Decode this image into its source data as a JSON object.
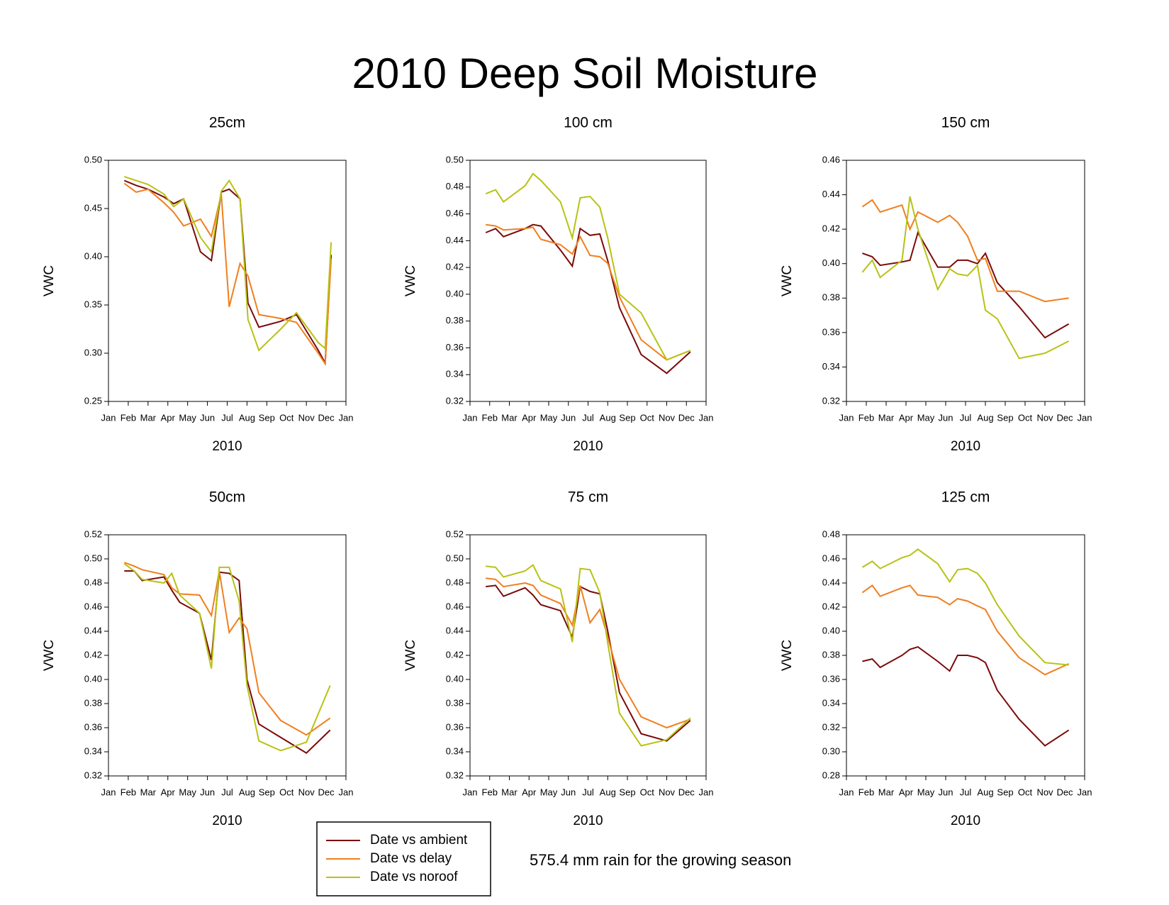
{
  "title": "2010 Deep Soil Moisture",
  "note": "575.4 mm rain for the growing season",
  "chart_data": [
    {
      "type": "line",
      "title": "25cm",
      "xlabel": "2010",
      "ylabel": "VWC",
      "x": [
        0.8,
        1.4,
        2.0,
        2.8,
        3.3,
        3.8,
        4.65,
        5.2,
        5.7,
        6.1,
        6.65,
        7.05,
        7.6,
        8.7,
        9.5,
        10.6,
        10.95,
        11.25
      ],
      "xlim": [
        0,
        12
      ],
      "xticks": [
        {
          "value": 0,
          "label": "Jan"
        },
        {
          "value": 1,
          "label": "Feb"
        },
        {
          "value": 2,
          "label": "Mar"
        },
        {
          "value": 3,
          "label": "Apr"
        },
        {
          "value": 4,
          "label": "May"
        },
        {
          "value": 5,
          "label": "Jun"
        },
        {
          "value": 6,
          "label": "Jul"
        },
        {
          "value": 7,
          "label": "Aug"
        },
        {
          "value": 8,
          "label": "Sep"
        },
        {
          "value": 9,
          "label": "Oct"
        },
        {
          "value": 10,
          "label": "Nov"
        },
        {
          "value": 11,
          "label": "Dec"
        },
        {
          "value": 12,
          "label": "Jan"
        }
      ],
      "ylim": [
        0.25,
        0.5
      ],
      "yticks": [
        {
          "value": 0.25,
          "label": "0.25"
        },
        {
          "value": 0.3,
          "label": "0.30"
        },
        {
          "value": 0.35,
          "label": "0.35"
        },
        {
          "value": 0.4,
          "label": "0.40"
        },
        {
          "value": 0.45,
          "label": "0.45"
        },
        {
          "value": 0.5,
          "label": "0.50"
        }
      ],
      "series": [
        {
          "name": "Date vs ambient",
          "color": "#7b0a0a",
          "values": [
            0.479,
            0.474,
            0.47,
            0.462,
            0.455,
            0.46,
            0.405,
            0.396,
            0.467,
            0.47,
            0.46,
            0.352,
            0.327,
            0.333,
            0.34,
            0.303,
            0.29,
            0.402
          ]
        },
        {
          "name": "Date vs delay",
          "color": "#f07f1e",
          "values": [
            0.476,
            0.467,
            0.47,
            0.456,
            0.446,
            0.432,
            0.439,
            0.421,
            0.465,
            0.348,
            0.393,
            0.38,
            0.34,
            0.336,
            0.332,
            0.3,
            0.289,
            0.398
          ]
        },
        {
          "name": "Date vs noroof",
          "color": "#b8c214",
          "values": [
            0.483,
            0.479,
            0.475,
            0.465,
            0.452,
            0.46,
            0.42,
            0.405,
            0.468,
            0.479,
            0.46,
            0.335,
            0.303,
            0.325,
            0.342,
            0.311,
            0.305,
            0.415
          ]
        }
      ]
    },
    {
      "type": "line",
      "title": "100 cm",
      "xlabel": "2010",
      "ylabel": "VWC",
      "x": [
        0.8,
        1.3,
        1.7,
        2.8,
        3.2,
        3.6,
        4.6,
        5.2,
        5.6,
        6.1,
        6.6,
        7.0,
        7.6,
        8.7,
        10.0,
        11.2
      ],
      "xlim": [
        0,
        12
      ],
      "xticks": [
        {
          "value": 0,
          "label": "Jan"
        },
        {
          "value": 1,
          "label": "Feb"
        },
        {
          "value": 2,
          "label": "Mar"
        },
        {
          "value": 3,
          "label": "Apr"
        },
        {
          "value": 4,
          "label": "May"
        },
        {
          "value": 5,
          "label": "Jun"
        },
        {
          "value": 6,
          "label": "Jul"
        },
        {
          "value": 7,
          "label": "Aug"
        },
        {
          "value": 8,
          "label": "Sep"
        },
        {
          "value": 9,
          "label": "Oct"
        },
        {
          "value": 10,
          "label": "Nov"
        },
        {
          "value": 11,
          "label": "Dec"
        },
        {
          "value": 12,
          "label": "Jan"
        }
      ],
      "ylim": [
        0.32,
        0.5
      ],
      "yticks": [
        {
          "value": 0.32,
          "label": "0.32"
        },
        {
          "value": 0.34,
          "label": "0.34"
        },
        {
          "value": 0.36,
          "label": "0.36"
        },
        {
          "value": 0.38,
          "label": "0.38"
        },
        {
          "value": 0.4,
          "label": "0.40"
        },
        {
          "value": 0.42,
          "label": "0.42"
        },
        {
          "value": 0.44,
          "label": "0.44"
        },
        {
          "value": 0.46,
          "label": "0.46"
        },
        {
          "value": 0.48,
          "label": "0.48"
        },
        {
          "value": 0.5,
          "label": "0.50"
        }
      ],
      "series": [
        {
          "color": "#7b0a0a",
          "values": [
            0.446,
            0.449,
            0.443,
            0.449,
            0.452,
            0.451,
            0.433,
            0.421,
            0.449,
            0.444,
            0.445,
            0.425,
            0.39,
            0.355,
            0.341,
            0.357
          ]
        },
        {
          "color": "#f07f1e",
          "values": [
            0.452,
            0.451,
            0.448,
            0.449,
            0.45,
            0.441,
            0.437,
            0.43,
            0.443,
            0.429,
            0.428,
            0.423,
            0.398,
            0.366,
            0.351,
            0.358
          ]
        },
        {
          "color": "#b8c214",
          "values": [
            0.475,
            0.478,
            0.469,
            0.481,
            0.49,
            0.485,
            0.469,
            0.442,
            0.472,
            0.473,
            0.465,
            0.442,
            0.4,
            0.386,
            0.351,
            0.358
          ]
        }
      ]
    },
    {
      "type": "line",
      "title": "150 cm",
      "xlabel": "2010",
      "ylabel": "VWC",
      "x": [
        0.8,
        1.3,
        1.7,
        2.8,
        3.2,
        3.6,
        4.6,
        5.2,
        5.6,
        6.1,
        6.6,
        7.0,
        7.6,
        8.7,
        10.0,
        11.2
      ],
      "xlim": [
        0,
        12
      ],
      "xticks": [
        {
          "value": 0,
          "label": "Jan"
        },
        {
          "value": 1,
          "label": "Feb"
        },
        {
          "value": 2,
          "label": "Mar"
        },
        {
          "value": 3,
          "label": "Apr"
        },
        {
          "value": 4,
          "label": "May"
        },
        {
          "value": 5,
          "label": "Jun"
        },
        {
          "value": 6,
          "label": "Jul"
        },
        {
          "value": 7,
          "label": "Aug"
        },
        {
          "value": 8,
          "label": "Sep"
        },
        {
          "value": 9,
          "label": "Oct"
        },
        {
          "value": 10,
          "label": "Nov"
        },
        {
          "value": 11,
          "label": "Dec"
        },
        {
          "value": 12,
          "label": "Jan"
        }
      ],
      "ylim": [
        0.32,
        0.46
      ],
      "yticks": [
        {
          "value": 0.32,
          "label": "0.32"
        },
        {
          "value": 0.34,
          "label": "0.34"
        },
        {
          "value": 0.36,
          "label": "0.36"
        },
        {
          "value": 0.38,
          "label": "0.38"
        },
        {
          "value": 0.4,
          "label": "0.40"
        },
        {
          "value": 0.42,
          "label": "0.42"
        },
        {
          "value": 0.44,
          "label": "0.44"
        },
        {
          "value": 0.46,
          "label": "0.46"
        }
      ],
      "series": [
        {
          "color": "#7b0a0a",
          "values": [
            0.406,
            0.404,
            0.399,
            0.401,
            0.402,
            0.418,
            0.398,
            0.398,
            0.402,
            0.402,
            0.4,
            0.406,
            0.389,
            0.375,
            0.357,
            0.365
          ]
        },
        {
          "color": "#f07f1e",
          "values": [
            0.433,
            0.437,
            0.43,
            0.434,
            0.42,
            0.43,
            0.424,
            0.428,
            0.424,
            0.416,
            0.402,
            0.403,
            0.384,
            0.384,
            0.378,
            0.38
          ]
        },
        {
          "color": "#b8c214",
          "values": [
            0.395,
            0.402,
            0.392,
            0.402,
            0.439,
            0.42,
            0.385,
            0.397,
            0.394,
            0.393,
            0.399,
            0.373,
            0.368,
            0.345,
            0.348,
            0.355
          ]
        }
      ]
    },
    {
      "type": "line",
      "title": "50cm",
      "xlabel": "2010",
      "ylabel": "VWC",
      "x": [
        0.8,
        1.3,
        1.7,
        2.8,
        3.2,
        3.6,
        4.6,
        5.2,
        5.6,
        6.1,
        6.6,
        7.0,
        7.6,
        8.7,
        10.0,
        11.2
      ],
      "xlim": [
        0,
        12
      ],
      "xticks": [
        {
          "value": 0,
          "label": "Jan"
        },
        {
          "value": 1,
          "label": "Feb"
        },
        {
          "value": 2,
          "label": "Mar"
        },
        {
          "value": 3,
          "label": "Apr"
        },
        {
          "value": 4,
          "label": "May"
        },
        {
          "value": 5,
          "label": "Jun"
        },
        {
          "value": 6,
          "label": "Jul"
        },
        {
          "value": 7,
          "label": "Aug"
        },
        {
          "value": 8,
          "label": "Sep"
        },
        {
          "value": 9,
          "label": "Oct"
        },
        {
          "value": 10,
          "label": "Nov"
        },
        {
          "value": 11,
          "label": "Dec"
        },
        {
          "value": 12,
          "label": "Jan"
        }
      ],
      "ylim": [
        0.32,
        0.52
      ],
      "yticks": [
        {
          "value": 0.32,
          "label": "0.32"
        },
        {
          "value": 0.34,
          "label": "0.34"
        },
        {
          "value": 0.36,
          "label": "0.36"
        },
        {
          "value": 0.38,
          "label": "0.38"
        },
        {
          "value": 0.4,
          "label": "0.40"
        },
        {
          "value": 0.42,
          "label": "0.42"
        },
        {
          "value": 0.44,
          "label": "0.44"
        },
        {
          "value": 0.46,
          "label": "0.46"
        },
        {
          "value": 0.48,
          "label": "0.48"
        },
        {
          "value": 0.5,
          "label": "0.50"
        },
        {
          "value": 0.52,
          "label": "0.52"
        }
      ],
      "series": [
        {
          "color": "#7b0a0a",
          "values": [
            0.49,
            0.49,
            0.482,
            0.485,
            0.474,
            0.464,
            0.455,
            0.416,
            0.489,
            0.488,
            0.482,
            0.4,
            0.363,
            0.352,
            0.339,
            0.358
          ]
        },
        {
          "color": "#f07f1e",
          "values": [
            0.497,
            0.494,
            0.491,
            0.487,
            0.476,
            0.471,
            0.47,
            0.453,
            0.49,
            0.439,
            0.451,
            0.442,
            0.389,
            0.366,
            0.354,
            0.368
          ]
        },
        {
          "color": "#b8c214",
          "values": [
            0.496,
            0.49,
            0.483,
            0.48,
            0.488,
            0.47,
            0.455,
            0.409,
            0.493,
            0.493,
            0.465,
            0.395,
            0.349,
            0.341,
            0.348,
            0.395
          ]
        }
      ]
    },
    {
      "type": "line",
      "title": "75 cm",
      "xlabel": "2010",
      "ylabel": "VWC",
      "x": [
        0.8,
        1.3,
        1.7,
        2.8,
        3.2,
        3.6,
        4.6,
        5.2,
        5.6,
        6.1,
        6.6,
        7.0,
        7.6,
        8.7,
        10.0,
        11.2
      ],
      "xlim": [
        0,
        12
      ],
      "xticks": [
        {
          "value": 0,
          "label": "Jan"
        },
        {
          "value": 1,
          "label": "Feb"
        },
        {
          "value": 2,
          "label": "Mar"
        },
        {
          "value": 3,
          "label": "Apr"
        },
        {
          "value": 4,
          "label": "May"
        },
        {
          "value": 5,
          "label": "Jun"
        },
        {
          "value": 6,
          "label": "Jul"
        },
        {
          "value": 7,
          "label": "Aug"
        },
        {
          "value": 8,
          "label": "Sep"
        },
        {
          "value": 9,
          "label": "Oct"
        },
        {
          "value": 10,
          "label": "Nov"
        },
        {
          "value": 11,
          "label": "Dec"
        },
        {
          "value": 12,
          "label": "Jan"
        }
      ],
      "ylim": [
        0.32,
        0.52
      ],
      "yticks": [
        {
          "value": 0.32,
          "label": "0.32"
        },
        {
          "value": 0.34,
          "label": "0.34"
        },
        {
          "value": 0.36,
          "label": "0.36"
        },
        {
          "value": 0.38,
          "label": "0.38"
        },
        {
          "value": 0.4,
          "label": "0.40"
        },
        {
          "value": 0.42,
          "label": "0.42"
        },
        {
          "value": 0.44,
          "label": "0.44"
        },
        {
          "value": 0.46,
          "label": "0.46"
        },
        {
          "value": 0.48,
          "label": "0.48"
        },
        {
          "value": 0.5,
          "label": "0.50"
        },
        {
          "value": 0.52,
          "label": "0.52"
        }
      ],
      "series": [
        {
          "color": "#7b0a0a",
          "values": [
            0.477,
            0.478,
            0.469,
            0.476,
            0.47,
            0.462,
            0.457,
            0.435,
            0.477,
            0.473,
            0.471,
            0.44,
            0.389,
            0.355,
            0.349,
            0.366
          ]
        },
        {
          "color": "#f07f1e",
          "values": [
            0.484,
            0.483,
            0.477,
            0.48,
            0.478,
            0.47,
            0.463,
            0.445,
            0.478,
            0.447,
            0.458,
            0.435,
            0.4,
            0.369,
            0.36,
            0.367
          ]
        },
        {
          "color": "#b8c214",
          "values": [
            0.494,
            0.493,
            0.485,
            0.49,
            0.495,
            0.482,
            0.475,
            0.431,
            0.492,
            0.491,
            0.472,
            0.43,
            0.372,
            0.345,
            0.35,
            0.368
          ]
        }
      ]
    },
    {
      "type": "line",
      "title": "125 cm",
      "xlabel": "2010",
      "ylabel": "VWC",
      "x": [
        0.8,
        1.3,
        1.7,
        2.8,
        3.2,
        3.6,
        4.6,
        5.2,
        5.6,
        6.1,
        6.6,
        7.0,
        7.6,
        8.7,
        10.0,
        11.2
      ],
      "xlim": [
        0,
        12
      ],
      "xticks": [
        {
          "value": 0,
          "label": "Jan"
        },
        {
          "value": 1,
          "label": "Feb"
        },
        {
          "value": 2,
          "label": "Mar"
        },
        {
          "value": 3,
          "label": "Apr"
        },
        {
          "value": 4,
          "label": "May"
        },
        {
          "value": 5,
          "label": "Jun"
        },
        {
          "value": 6,
          "label": "Jul"
        },
        {
          "value": 7,
          "label": "Aug"
        },
        {
          "value": 8,
          "label": "Sep"
        },
        {
          "value": 9,
          "label": "Oct"
        },
        {
          "value": 10,
          "label": "Nov"
        },
        {
          "value": 11,
          "label": "Dec"
        },
        {
          "value": 12,
          "label": "Jan"
        }
      ],
      "ylim": [
        0.28,
        0.48
      ],
      "yticks": [
        {
          "value": 0.28,
          "label": "0.28"
        },
        {
          "value": 0.3,
          "label": "0.30"
        },
        {
          "value": 0.32,
          "label": "0.32"
        },
        {
          "value": 0.34,
          "label": "0.34"
        },
        {
          "value": 0.36,
          "label": "0.36"
        },
        {
          "value": 0.38,
          "label": "0.38"
        },
        {
          "value": 0.4,
          "label": "0.40"
        },
        {
          "value": 0.42,
          "label": "0.42"
        },
        {
          "value": 0.44,
          "label": "0.44"
        },
        {
          "value": 0.46,
          "label": "0.46"
        },
        {
          "value": 0.48,
          "label": "0.48"
        }
      ],
      "series": [
        {
          "color": "#7b0a0a",
          "values": [
            0.375,
            0.377,
            0.37,
            0.38,
            0.385,
            0.387,
            0.375,
            0.367,
            0.38,
            0.38,
            0.378,
            0.374,
            0.351,
            0.327,
            0.305,
            0.318
          ]
        },
        {
          "color": "#f07f1e",
          "values": [
            0.432,
            0.438,
            0.429,
            0.436,
            0.438,
            0.43,
            0.428,
            0.422,
            0.427,
            0.425,
            0.421,
            0.418,
            0.4,
            0.378,
            0.364,
            0.373
          ]
        },
        {
          "color": "#b8c214",
          "values": [
            0.453,
            0.458,
            0.452,
            0.461,
            0.463,
            0.468,
            0.456,
            0.441,
            0.451,
            0.452,
            0.448,
            0.44,
            0.422,
            0.396,
            0.374,
            0.372
          ]
        }
      ]
    }
  ]
}
